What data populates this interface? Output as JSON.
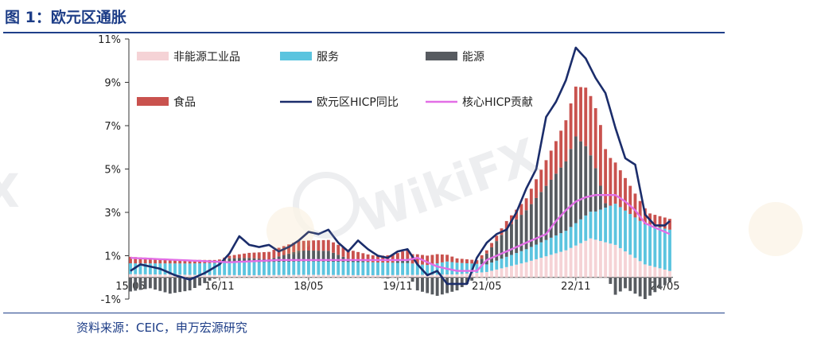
{
  "header": {
    "title": "图 1：欧元区通胀"
  },
  "footer": {
    "source": "资料来源：CEIC，申万宏源研究"
  },
  "chart_data": {
    "type": "bar",
    "stacked": true,
    "title": "图 1：欧元区通胀",
    "ylim": [
      -1,
      11
    ],
    "y_ticks": [
      11,
      9,
      7,
      5,
      3,
      1,
      -1
    ],
    "y_tick_labels": [
      "11%",
      "9%",
      "7%",
      "5%",
      "3%",
      "1%",
      "-1%"
    ],
    "x_start": "15/05",
    "x_end": "24/05",
    "x_tick_labels": [
      "15/05",
      "16/11",
      "18/05",
      "19/11",
      "21/05",
      "22/11",
      "24/05"
    ],
    "x_tick_index": [
      0,
      18,
      36,
      54,
      72,
      90,
      108
    ],
    "legend_position": "top",
    "colors": {
      "non_energy_industrial": "#f5d3d6",
      "services": "#5bc4df",
      "energy": "#575b60",
      "food": "#c9524e",
      "hicp": "#1b2d6b",
      "core": "#e26ee6"
    },
    "series": [
      {
        "name": "非能源工业品",
        "key": "non_energy_industrial",
        "kind": "bar",
        "anchors": [
          [
            0,
            0.15
          ],
          [
            12,
            0.12
          ],
          [
            24,
            0.1
          ],
          [
            36,
            0.12
          ],
          [
            48,
            0.1
          ],
          [
            60,
            0.12
          ],
          [
            66,
            0.14
          ],
          [
            72,
            0.25
          ],
          [
            80,
            0.7
          ],
          [
            88,
            1.25
          ],
          [
            93,
            1.8
          ],
          [
            98,
            1.5
          ],
          [
            104,
            0.6
          ],
          [
            109,
            0.3
          ]
        ]
      },
      {
        "name": "服务",
        "key": "services",
        "kind": "bar",
        "anchors": [
          [
            0,
            0.5
          ],
          [
            12,
            0.52
          ],
          [
            24,
            0.6
          ],
          [
            36,
            0.62
          ],
          [
            48,
            0.6
          ],
          [
            56,
            0.55
          ],
          [
            60,
            0.45
          ],
          [
            64,
            0.6
          ],
          [
            72,
            0.35
          ],
          [
            80,
            0.6
          ],
          [
            88,
            0.9
          ],
          [
            94,
            1.3
          ],
          [
            98,
            1.9
          ],
          [
            104,
            1.85
          ],
          [
            109,
            1.9
          ]
        ]
      },
      {
        "name": "能源",
        "key": "energy",
        "kind": "bar",
        "anchors": [
          [
            0,
            -0.65
          ],
          [
            4,
            -0.5
          ],
          [
            8,
            -0.75
          ],
          [
            12,
            -0.6
          ],
          [
            16,
            -0.15
          ],
          [
            20,
            0.2
          ],
          [
            24,
            0.2
          ],
          [
            28,
            0.12
          ],
          [
            34,
            0.5
          ],
          [
            40,
            0.5
          ],
          [
            44,
            0.15
          ],
          [
            48,
            0.02
          ],
          [
            52,
            -0.05
          ],
          [
            56,
            0.2
          ],
          [
            58,
            -0.6
          ],
          [
            62,
            -0.85
          ],
          [
            66,
            -0.6
          ],
          [
            70,
            0.0
          ],
          [
            72,
            0.5
          ],
          [
            76,
            1.3
          ],
          [
            80,
            1.8
          ],
          [
            84,
            2.5
          ],
          [
            88,
            3.2
          ],
          [
            90,
            4.0
          ],
          [
            92,
            3.2
          ],
          [
            94,
            2.0
          ],
          [
            96,
            0.2
          ],
          [
            98,
            -0.8
          ],
          [
            100,
            -0.5
          ],
          [
            104,
            -1.0
          ],
          [
            109,
            -0.2
          ]
        ]
      },
      {
        "name": "食品",
        "key": "food",
        "kind": "bar",
        "anchors": [
          [
            0,
            0.3
          ],
          [
            10,
            0.18
          ],
          [
            20,
            0.12
          ],
          [
            30,
            0.4
          ],
          [
            40,
            0.5
          ],
          [
            50,
            0.3
          ],
          [
            58,
            0.45
          ],
          [
            62,
            0.42
          ],
          [
            66,
            0.2
          ],
          [
            72,
            0.15
          ],
          [
            80,
            0.55
          ],
          [
            86,
            1.5
          ],
          [
            92,
            2.7
          ],
          [
            95,
            2.8
          ],
          [
            98,
            1.9
          ],
          [
            102,
            1.1
          ],
          [
            105,
            0.55
          ],
          [
            109,
            0.5
          ]
        ]
      },
      {
        "name": "欧元区HICP同比",
        "key": "hicp",
        "kind": "line",
        "anchors": [
          [
            0,
            0.3
          ],
          [
            2,
            0.6
          ],
          [
            6,
            0.4
          ],
          [
            9,
            0.1
          ],
          [
            12,
            -0.1
          ],
          [
            15,
            0.2
          ],
          [
            18,
            0.6
          ],
          [
            20,
            1.1
          ],
          [
            22,
            1.9
          ],
          [
            24,
            1.5
          ],
          [
            26,
            1.4
          ],
          [
            28,
            1.5
          ],
          [
            30,
            1.2
          ],
          [
            32,
            1.4
          ],
          [
            34,
            1.7
          ],
          [
            36,
            2.1
          ],
          [
            38,
            2.0
          ],
          [
            40,
            2.2
          ],
          [
            42,
            1.6
          ],
          [
            44,
            1.2
          ],
          [
            46,
            1.7
          ],
          [
            48,
            1.3
          ],
          [
            50,
            1.0
          ],
          [
            52,
            0.9
          ],
          [
            54,
            1.2
          ],
          [
            56,
            1.3
          ],
          [
            58,
            0.6
          ],
          [
            60,
            0.1
          ],
          [
            62,
            0.3
          ],
          [
            64,
            -0.3
          ],
          [
            66,
            -0.3
          ],
          [
            68,
            -0.3
          ],
          [
            70,
            0.9
          ],
          [
            72,
            1.6
          ],
          [
            74,
            2.0
          ],
          [
            76,
            2.2
          ],
          [
            78,
            3.0
          ],
          [
            80,
            4.1
          ],
          [
            82,
            5.0
          ],
          [
            84,
            7.4
          ],
          [
            86,
            8.1
          ],
          [
            88,
            9.1
          ],
          [
            90,
            10.6
          ],
          [
            92,
            10.1
          ],
          [
            94,
            9.2
          ],
          [
            96,
            8.5
          ],
          [
            98,
            6.9
          ],
          [
            100,
            5.5
          ],
          [
            102,
            5.2
          ],
          [
            104,
            2.9
          ],
          [
            106,
            2.4
          ],
          [
            108,
            2.4
          ],
          [
            109,
            2.6
          ]
        ]
      },
      {
        "name": "核心HICP贡献",
        "key": "core",
        "kind": "line",
        "anchors": [
          [
            0,
            0.9
          ],
          [
            10,
            0.8
          ],
          [
            20,
            0.7
          ],
          [
            30,
            0.8
          ],
          [
            40,
            0.8
          ],
          [
            50,
            0.8
          ],
          [
            56,
            0.8
          ],
          [
            58,
            0.9
          ],
          [
            62,
            0.5
          ],
          [
            66,
            0.3
          ],
          [
            70,
            0.3
          ],
          [
            72,
            0.8
          ],
          [
            76,
            1.2
          ],
          [
            80,
            1.6
          ],
          [
            84,
            2.0
          ],
          [
            86,
            2.6
          ],
          [
            88,
            3.1
          ],
          [
            90,
            3.5
          ],
          [
            92,
            3.7
          ],
          [
            94,
            3.8
          ],
          [
            96,
            3.8
          ],
          [
            98,
            3.8
          ],
          [
            100,
            3.5
          ],
          [
            102,
            3.1
          ],
          [
            104,
            2.5
          ],
          [
            106,
            2.3
          ],
          [
            108,
            2.1
          ],
          [
            109,
            2.0
          ]
        ]
      }
    ]
  }
}
